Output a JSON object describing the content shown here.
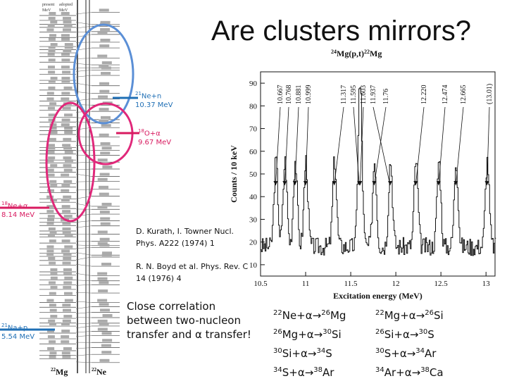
{
  "slide": {
    "title": "Are clusters mirrors?"
  },
  "level_scheme": {
    "header_left_1": "present",
    "header_left_2": "MeV",
    "header_right_1": "adopted",
    "header_right_2": "MeV",
    "nucleus_left": "22Mg",
    "nucleus_right": "22Ne",
    "thresholds": [
      {
        "label": "21Ne+n",
        "energy": "10.37 MeV",
        "color": "#1f6fb5"
      },
      {
        "label": "18O+α",
        "energy": "9.67 MeV",
        "color": "#d81b60"
      },
      {
        "label": "18Ne+α",
        "energy": "8.14 MeV",
        "color": "#d81b60"
      },
      {
        "label": "21Na+p",
        "energy": "5.54 MeV",
        "color": "#1f6fb5"
      }
    ]
  },
  "spectrum": {
    "title": "24Mg(p,t)22Mg",
    "xlabel": "Excitation energy (MeV)",
    "ylabel": "Counts / 10 keV",
    "x_ticks": [
      "10.5",
      "11",
      "11.5",
      "12",
      "12.5",
      "13"
    ],
    "y_ticks": [
      "10",
      "20",
      "30",
      "40",
      "50",
      "60",
      "70",
      "80",
      "90"
    ],
    "xlim": [
      10.5,
      13.1
    ],
    "ylim": [
      5,
      95
    ],
    "peak_labels": [
      "10.667",
      "10.768",
      "10.881",
      "10.999",
      "11.317",
      "11.595",
      "11.603",
      "11.937",
      "11.76",
      "12.220",
      "12.474",
      "12.665",
      "(13.01)"
    ],
    "peak_positions": [
      10.667,
      10.768,
      10.881,
      10.999,
      11.317,
      11.595,
      11.603,
      11.937,
      11.76,
      12.22,
      12.474,
      12.665,
      13.01
    ]
  },
  "references": {
    "ref1": "D. Kurath, I. Towner Nucl. Phys. A222 (1974) 1",
    "ref2": "R. N. Boyd et al. Phys. Rev. C 14 (1976) 4"
  },
  "conclusion": "Close correlation between two-nucleon transfer and α transfer!",
  "reactions_left": [
    "22Ne+α→26Mg",
    "26Mg+α→30Si",
    "30Si+α→34S",
    "34S+α→38Ar"
  ],
  "reactions_right": [
    "22Mg+α→26Si",
    "26Si+α→30S",
    "30S+α→34Ar",
    "34Ar+α→38Ca"
  ]
}
